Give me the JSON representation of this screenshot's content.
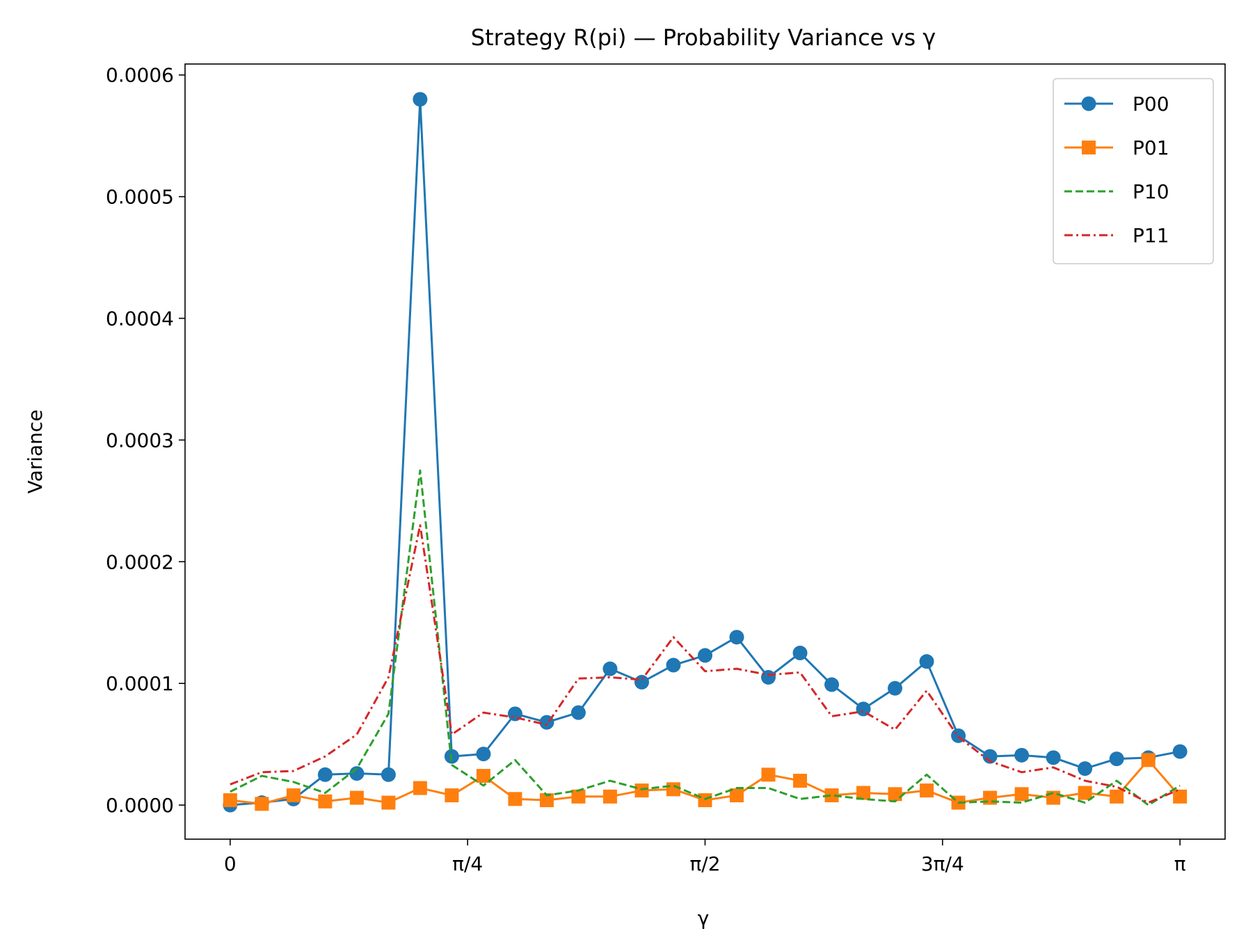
{
  "chart_data": {
    "type": "line",
    "title": "Strategy R(pi) — Probability Variance vs γ",
    "xlabel": "γ",
    "ylabel": "Variance",
    "xlim": [
      -0.1492,
      3.2908
    ],
    "ylim": [
      -2.8e-05,
      0.000609
    ],
    "xticks": [
      {
        "value": 0,
        "label": "0"
      },
      {
        "value": 0.7854,
        "label": "π/4"
      },
      {
        "value": 1.5708,
        "label": "π/2"
      },
      {
        "value": 2.3562,
        "label": "3π/4"
      },
      {
        "value": 3.1416,
        "label": "π"
      }
    ],
    "yticks": [
      {
        "value": 0.0,
        "label": "0.0000"
      },
      {
        "value": 0.0001,
        "label": "0.0001"
      },
      {
        "value": 0.0002,
        "label": "0.0002"
      },
      {
        "value": 0.0003,
        "label": "0.0003"
      },
      {
        "value": 0.0004,
        "label": "0.0004"
      },
      {
        "value": 0.0005,
        "label": "0.0005"
      },
      {
        "value": 0.0006,
        "label": "0.0006"
      }
    ],
    "grid": false,
    "legend_position": "top-right",
    "x": [
      0.0,
      0.1047,
      0.2094,
      0.3142,
      0.4189,
      0.5236,
      0.6283,
      0.733,
      0.8378,
      0.9425,
      1.0472,
      1.1519,
      1.2566,
      1.3614,
      1.4661,
      1.5708,
      1.6755,
      1.7802,
      1.885,
      1.9897,
      2.0944,
      2.1991,
      2.3038,
      2.4086,
      2.5133,
      2.618,
      2.7227,
      2.8274,
      2.9322,
      3.0369,
      3.1416
    ],
    "series": [
      {
        "name": "P00",
        "color": "#1f77b4",
        "line_style": "solid",
        "marker": "circle",
        "values": [
          0.0,
          2e-06,
          5e-06,
          2.5e-05,
          2.6e-05,
          2.5e-05,
          0.00058,
          4e-05,
          4.2e-05,
          7.5e-05,
          6.8e-05,
          7.6e-05,
          0.000112,
          0.000101,
          0.000115,
          0.000123,
          0.000138,
          0.000105,
          0.000125,
          9.9e-05,
          7.9e-05,
          9.6e-05,
          0.000118,
          5.7e-05,
          4e-05,
          4.1e-05,
          3.9e-05,
          3e-05,
          3.8e-05,
          3.9e-05,
          4.4e-05
        ]
      },
      {
        "name": "P01",
        "color": "#ff7f0e",
        "line_style": "solid",
        "marker": "square",
        "values": [
          4e-06,
          1e-06,
          8e-06,
          3e-06,
          6e-06,
          2e-06,
          1.4e-05,
          8e-06,
          2.4e-05,
          5e-06,
          4e-06,
          7e-06,
          7e-06,
          1.2e-05,
          1.3e-05,
          4e-06,
          8e-06,
          2.5e-05,
          2e-05,
          8e-06,
          1e-05,
          9e-06,
          1.2e-05,
          2e-06,
          6e-06,
          9e-06,
          6e-06,
          1e-05,
          7e-06,
          3.7e-05,
          7e-06
        ]
      },
      {
        "name": "P10",
        "color": "#2ca02c",
        "line_style": "dashed",
        "marker": "none",
        "values": [
          1.1e-05,
          2.4e-05,
          1.9e-05,
          1e-05,
          3e-05,
          7.5e-05,
          0.000275,
          3.3e-05,
          1.6e-05,
          3.7e-05,
          8e-06,
          1.2e-05,
          2e-05,
          1.3e-05,
          1.6e-05,
          5e-06,
          1.4e-05,
          1.4e-05,
          5e-06,
          8e-06,
          5e-06,
          3e-06,
          2.5e-05,
          2e-06,
          3e-06,
          2e-06,
          1e-05,
          2e-06,
          2e-05,
          0.0,
          1.6e-05
        ]
      },
      {
        "name": "P11",
        "color": "#d62728",
        "line_style": "dashdot",
        "marker": "none",
        "values": [
          1.7e-05,
          2.7e-05,
          2.8e-05,
          4e-05,
          5.8e-05,
          0.000105,
          0.00023,
          5.8e-05,
          7.6e-05,
          7.2e-05,
          6.6e-05,
          0.000104,
          0.000105,
          0.000103,
          0.000138,
          0.00011,
          0.000112,
          0.000107,
          0.000109,
          7.3e-05,
          7.7e-05,
          6.2e-05,
          9.4e-05,
          5.6e-05,
          3.6e-05,
          2.7e-05,
          3.1e-05,
          2e-05,
          1.5e-05,
          2e-06,
          1.3e-05
        ]
      }
    ]
  }
}
